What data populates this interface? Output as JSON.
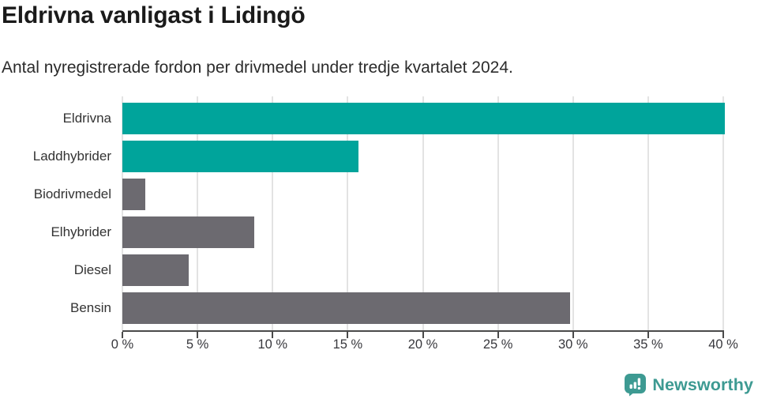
{
  "title": "Eldrivna vanligast i Lidingö",
  "subtitle": "Antal nyregistrerade fordon per drivmedel under tredje kvartalet 2024.",
  "chart_data": {
    "type": "bar",
    "orientation": "horizontal",
    "title": "Eldrivna vanligast i Lidingö",
    "subtitle": "Antal nyregistrerade fordon per drivmedel under tredje kvartalet 2024.",
    "categories": [
      "Eldrivna",
      "Laddhybrider",
      "Biodrivmedel",
      "Elhybrider",
      "Diesel",
      "Bensin"
    ],
    "values": [
      40.1,
      15.7,
      1.5,
      8.8,
      4.4,
      29.8
    ],
    "unit": "%",
    "bar_colors": [
      "#00a49b",
      "#00a49b",
      "#6c6a70",
      "#6c6a70",
      "#6c6a70",
      "#6c6a70"
    ],
    "xlim": [
      0,
      40
    ],
    "x_tick_values": [
      0,
      5,
      10,
      15,
      20,
      25,
      30,
      35,
      40
    ],
    "x_tick_labels": [
      "0 %",
      "5 %",
      "10 %",
      "15 %",
      "20 %",
      "25 %",
      "30 %",
      "35 %",
      "40 %"
    ],
    "grid": true,
    "legend_position": "none",
    "xlabel": "",
    "ylabel": ""
  },
  "colors": {
    "accent_teal": "#00a49b",
    "neutral_gray": "#6c6a70",
    "gridline": "#e3e3e3",
    "axis_line": "#4a4a4a",
    "title_text": "#1a1a1a",
    "body_text": "#333333",
    "brand_teal": "#3d9a92"
  },
  "footer": {
    "brand": "Newsworthy",
    "logo_icon": "bar-chart-speech-bubble-icon"
  }
}
